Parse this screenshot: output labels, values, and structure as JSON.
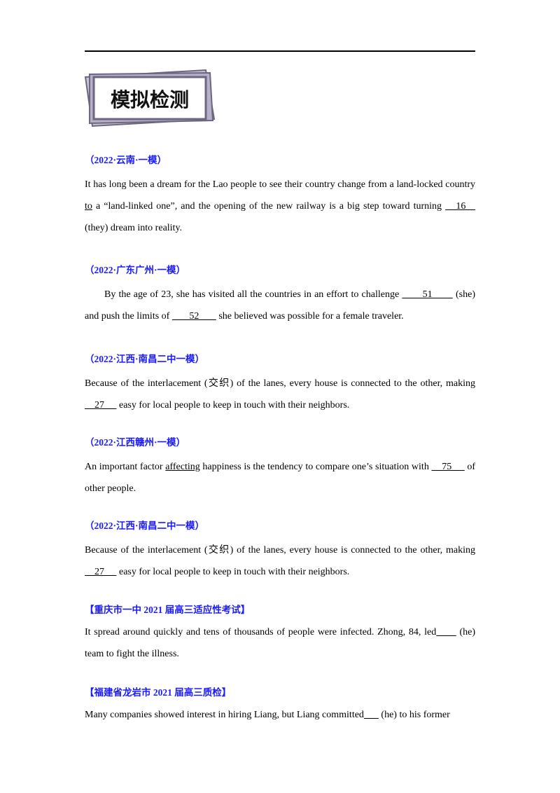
{
  "banner_title": "模拟检测",
  "sections": [
    {
      "source": "（2022·云南·一模）",
      "parts": [
        "It has long been a dream for the Lao people to see their country change from a land-locked country ",
        "to",
        " a “land-linked one”, and the opening of the new railway is a big step toward turning ",
        "   16   ",
        " (they) dream into reality."
      ]
    },
    {
      "source": "（2022·广东广州·一模）",
      "parts": [
        "By the age of 23, she has visited all the countries in an effort to challenge ",
        "       51       ",
        " (she) and push the limits of ",
        "       52       ",
        " she believed was possible for a female traveler."
      ]
    },
    {
      "source": "（2022·江西·南昌二中一模）",
      "parts": [
        "Because of the interlacement (交织) of the lanes, every house is connected to the other, making ",
        "    27     ",
        " easy for local people to keep in touch with their neighbors."
      ]
    },
    {
      "source": "（2022·江西赣州·一模）",
      "parts": [
        "An important factor ",
        "affecting",
        " happiness is the tendency to compare one’s situation with ",
        "    75     ",
        " of other people."
      ]
    },
    {
      "source": "（2022·江西·南昌二中一模）",
      "parts": [
        "Because of the interlacement (交织) of the lanes, every house is connected to the other, making ",
        "    27     ",
        " easy for local people to keep in touch with their neighbors."
      ]
    },
    {
      "source": "【重庆市一中 2021 届高三适应性考试】",
      "parts": [
        "It spread around quickly and tens of thousands of people were infected. Zhong, 84, led",
        "      ",
        "  (he) team to fight the illness."
      ]
    },
    {
      "source": "【福建省龙岩市 2021 届高三质检】",
      "parts": [
        "Many companies showed interest in hiring Liang, but Liang committed",
        "      ",
        "  (he) to his former"
      ]
    }
  ]
}
